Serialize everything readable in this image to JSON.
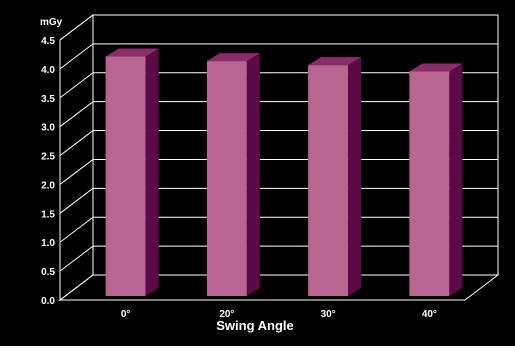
{
  "chart_data": {
    "type": "bar",
    "categories": [
      "0°",
      "20°",
      "30°",
      "40°"
    ],
    "values": [
      4.25,
      4.17,
      4.1,
      3.99
    ],
    "title": "",
    "unit_label": "mGy",
    "xlabel": "Swing Angle",
    "ylabel": "",
    "ylim": [
      0,
      4.5
    ],
    "yticks": [
      "0.0",
      "0.5",
      "1.0",
      "1.5",
      "2.0",
      "2.5",
      "3.0",
      "3.5",
      "4.0",
      "4.5"
    ],
    "grid": true,
    "style": "3d",
    "colors": {
      "background": "#000000",
      "bar_front": "#b8668f",
      "bar_top": "#8a2c68",
      "bar_side": "#5c0a45",
      "grid": "#ffffff",
      "text": "#ffffff"
    }
  }
}
